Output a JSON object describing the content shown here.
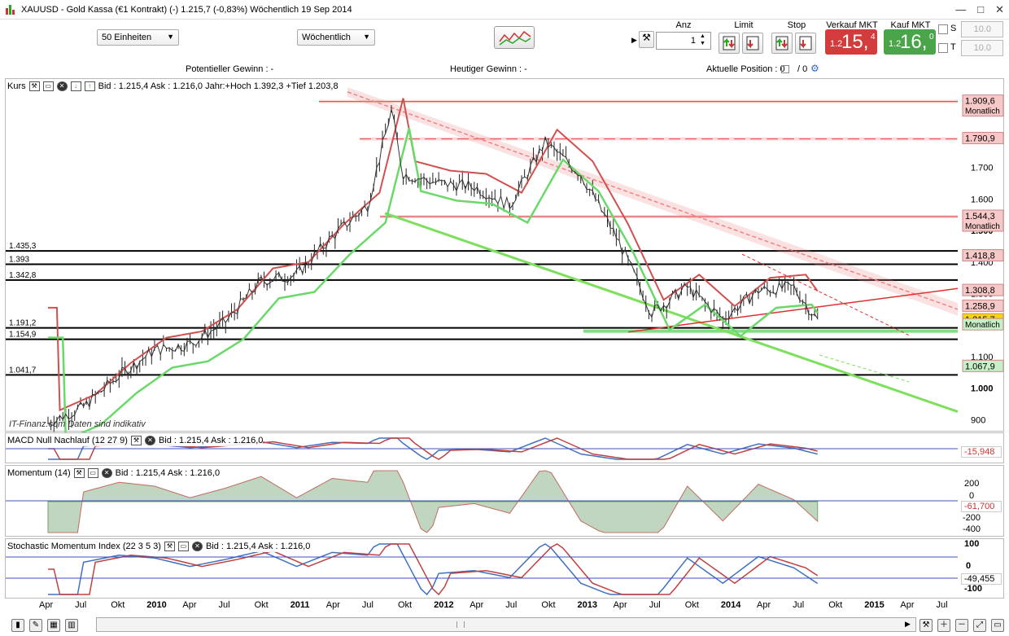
{
  "window": {
    "title": "XAUUSD - Gold Kassa (€1 Kontrakt) (-)    1.215,7 (-0,83%)    Wöchentlich  19 Sep 2014",
    "buttons": [
      "—",
      "□",
      "✕"
    ]
  },
  "toolbar": {
    "units_select": "50 Einheiten",
    "period_select": "Wöchentlich",
    "anz_label": "Anz",
    "quantity": "1",
    "limit_label": "Limit",
    "stop_label": "Stop",
    "sell_label": "Verkauf MKT",
    "buy_label": "Kauf MKT",
    "sell_price": {
      "small": "1.2",
      "big": "15,",
      "sup": "4"
    },
    "buy_price": {
      "small": "1.2",
      "big": "16,",
      "sup": "0"
    },
    "s_label": "S",
    "t_label": "T",
    "s_value": "10.0",
    "t_value": "10.0"
  },
  "infobar": {
    "potential": "Potentieller Gewinn : -",
    "today": "Heutiger Gewinn : -",
    "position_label": "Aktuelle Position : 0",
    "position_sep": "/ 0"
  },
  "main_panel": {
    "header_label": "Kurs",
    "header_text": "Bid : 1.215,4  Ask : 1.216,0  Jahr:+Hoch 1.392,3  +Tief 1.203,8",
    "watermark": "IT-Finanz.com  Daten sind indikativ",
    "y_ticks": [
      "1.700",
      "1.600",
      "1.500",
      "1.400",
      "1.300",
      "1.200",
      "1.100",
      "1.000",
      "900"
    ],
    "levels_left": [
      "1.435,3",
      "1.393",
      "1.342,8",
      "1.191,2",
      "1.154,9",
      "1.041,7"
    ],
    "price_tags": [
      {
        "text": "1.909,6",
        "sub": "Monatlich",
        "color": "#f6c8c8"
      },
      {
        "text": "1.790,9",
        "sub": "",
        "color": "#f6c8c8"
      },
      {
        "text": "1.544,3",
        "sub": "Monatlich",
        "color": "#f6c8c8"
      },
      {
        "text": "1.418,8",
        "sub": "",
        "color": "#f6c8c8"
      },
      {
        "text": "1.308,8",
        "sub": "",
        "color": "#f6c8c8"
      },
      {
        "text": "1.258,9",
        "sub": "",
        "color": "#f6c8c8"
      },
      {
        "text": "1.215,7",
        "sub": "",
        "color": "#f5d800"
      },
      {
        "text": "",
        "sub": "Monatlich",
        "color": "#c8f0c8"
      },
      {
        "text": "1.067,9",
        "sub": "",
        "color": "#c8f0c8"
      }
    ]
  },
  "macd_panel": {
    "label": "MACD Null Nachlauf (12 27 9)",
    "bid_text": "Bid : 1.215,4  Ask : 1.216,0",
    "value": "-15,948"
  },
  "momentum_panel": {
    "label": "Momentum (14)",
    "bid_text": "Bid : 1.215,4  Ask : 1.216,0",
    "y_ticks": [
      "200",
      "0",
      "-200",
      "-400"
    ],
    "value": "-61,700"
  },
  "stoch_panel": {
    "label": "Stochastic Momentum Index (22 3 5 3)",
    "bid_text": "Bid : 1.215,4  Ask : 1.216,0",
    "y_ticks": [
      "100",
      "0",
      "-100"
    ],
    "value": "-49,455"
  },
  "xaxis": {
    "labels": [
      "Apr",
      "Jul",
      "Okt",
      "2010",
      "Apr",
      "Jul",
      "Okt",
      "2011",
      "Apr",
      "Jul",
      "Okt",
      "2012",
      "Apr",
      "Jul",
      "Okt",
      "2013",
      "Apr",
      "Jul",
      "Okt",
      "2014",
      "Apr",
      "Jul",
      "Okt",
      "2015",
      "Apr",
      "Jul"
    ],
    "bold": [
      "2010",
      "2011",
      "2012",
      "2013",
      "2014",
      "2015"
    ]
  },
  "chart_data": {
    "type": "line",
    "title": "XAUUSD - Gold Kassa (€1 Kontrakt) (-)",
    "x": [
      "2009-04",
      "2009-07",
      "2009-10",
      "2010-01",
      "2010-04",
      "2010-07",
      "2010-10",
      "2011-01",
      "2011-04",
      "2011-07",
      "2011-09",
      "2011-10",
      "2012-01",
      "2012-04",
      "2012-07",
      "2012-10",
      "2013-01",
      "2013-04",
      "2013-07",
      "2013-10",
      "2014-01",
      "2014-04",
      "2014-07",
      "2014-09"
    ],
    "series": [
      {
        "values": [
          890,
          940,
          1040,
          1120,
          1140,
          1210,
          1340,
          1360,
          1480,
          1580,
          1880,
          1680,
          1650,
          1640,
          1580,
          1780,
          1680,
          1480,
          1240,
          1320,
          1220,
          1310,
          1320,
          1215
        ]
      }
    ],
    "ylim": [
      880,
      1950
    ],
    "ylabel": ""
  }
}
